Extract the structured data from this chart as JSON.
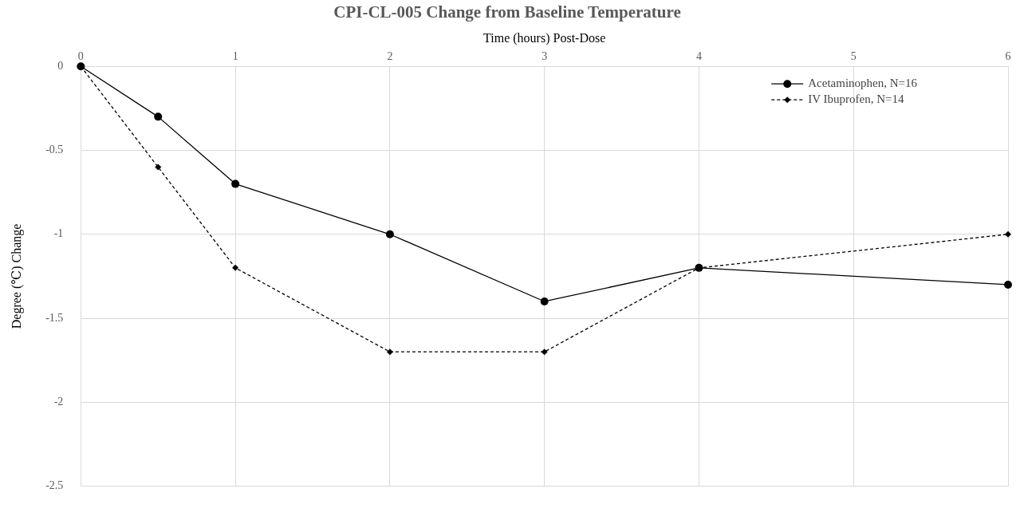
{
  "chart_data": {
    "type": "line",
    "title": "CPI-CL-005 Change from Baseline Temperature",
    "xlabel": "Time (hours) Post-Dose",
    "ylabel": "Degree (℃) Change",
    "x": [
      0,
      0.5,
      1,
      2,
      3,
      4,
      6
    ],
    "series": [
      {
        "name": "Acetaminophen, N=16",
        "color": "#000000",
        "marker": "circle",
        "line_style": "solid",
        "values": [
          0,
          -0.3,
          -0.7,
          -1,
          -1.4,
          -1.2,
          -1.3
        ]
      },
      {
        "name": "IV Ibuprofen, N=14",
        "color": "#000000",
        "marker": "diamond",
        "line_style": "dashed",
        "values": [
          0,
          -0.6,
          -1.2,
          -1.7,
          -1.7,
          -1.2,
          -1.0
        ]
      }
    ],
    "xlim": [
      0,
      6
    ],
    "xticks": [
      0,
      1,
      2,
      3,
      4,
      5,
      6
    ],
    "ylim": [
      -2.5,
      0
    ],
    "yticks": [
      0,
      -0.5,
      -1,
      -1.5,
      -2,
      -2.5
    ],
    "grid": true,
    "legend": "top right"
  }
}
